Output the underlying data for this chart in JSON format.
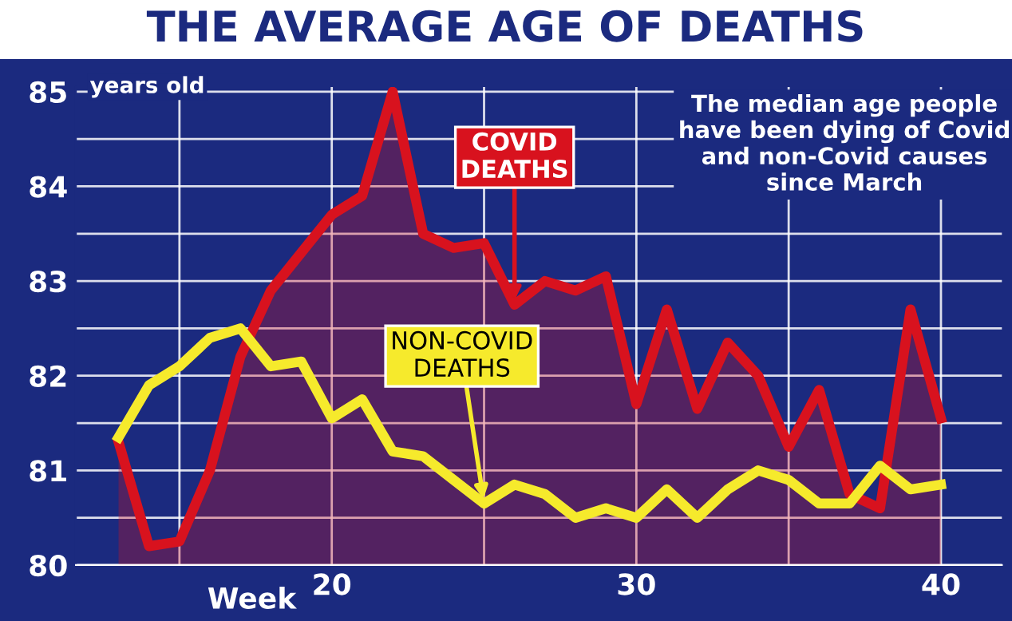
{
  "chart_data": {
    "type": "line",
    "title": "THE AVERAGE AGE OF DEATHS",
    "xlabel": "Week",
    "ylabel": "years old",
    "annotations": [
      "The median age people have been dying of Covid and non-Covid causes since March"
    ],
    "x": [
      13,
      14,
      15,
      16,
      17,
      18,
      19,
      20,
      21,
      22,
      23,
      24,
      25,
      26,
      27,
      28,
      29,
      30,
      31,
      32,
      33,
      34,
      35,
      36,
      37,
      38,
      39,
      40
    ],
    "series": [
      {
        "name": "COVID DEATHS",
        "type": "area",
        "color": "#d8121e",
        "values": [
          81.3,
          80.2,
          80.25,
          81.0,
          82.2,
          82.9,
          83.3,
          83.7,
          83.9,
          85.0,
          83.5,
          83.35,
          83.4,
          82.75,
          83.0,
          82.9,
          83.05,
          81.7,
          82.7,
          81.65,
          82.35,
          82.0,
          81.25,
          81.85,
          80.75,
          80.6,
          82.7,
          81.55
        ]
      },
      {
        "name": "NON-COVID DEATHS",
        "type": "line",
        "color": "#f6ea2c",
        "values": [
          81.35,
          81.9,
          82.1,
          82.4,
          82.5,
          82.1,
          82.15,
          81.55,
          81.75,
          81.2,
          81.15,
          80.9,
          80.65,
          80.85,
          80.75,
          80.5,
          80.6,
          80.5,
          80.8,
          80.5,
          80.8,
          81.0,
          80.9,
          80.65,
          80.65,
          81.05,
          80.8,
          80.85
        ]
      }
    ],
    "xlim": [
      11.6,
      42
    ],
    "xticks": [
      {
        "value": 15,
        "label": null
      },
      20,
      {
        "value": 25,
        "label": null
      },
      30,
      {
        "value": 35,
        "label": null
      },
      40
    ],
    "ylim": [
      80,
      85.05
    ],
    "yticks": [
      80,
      {
        "value": 80.5,
        "label": null
      },
      81,
      {
        "value": 81.5,
        "label": null
      },
      82,
      {
        "value": 82.5,
        "label": null
      },
      83,
      {
        "value": 83.5,
        "label": null
      },
      84,
      {
        "value": 84.5,
        "label": null
      },
      85
    ],
    "grid": true,
    "legend": false,
    "marker": "none",
    "line_style": "solid"
  }
}
